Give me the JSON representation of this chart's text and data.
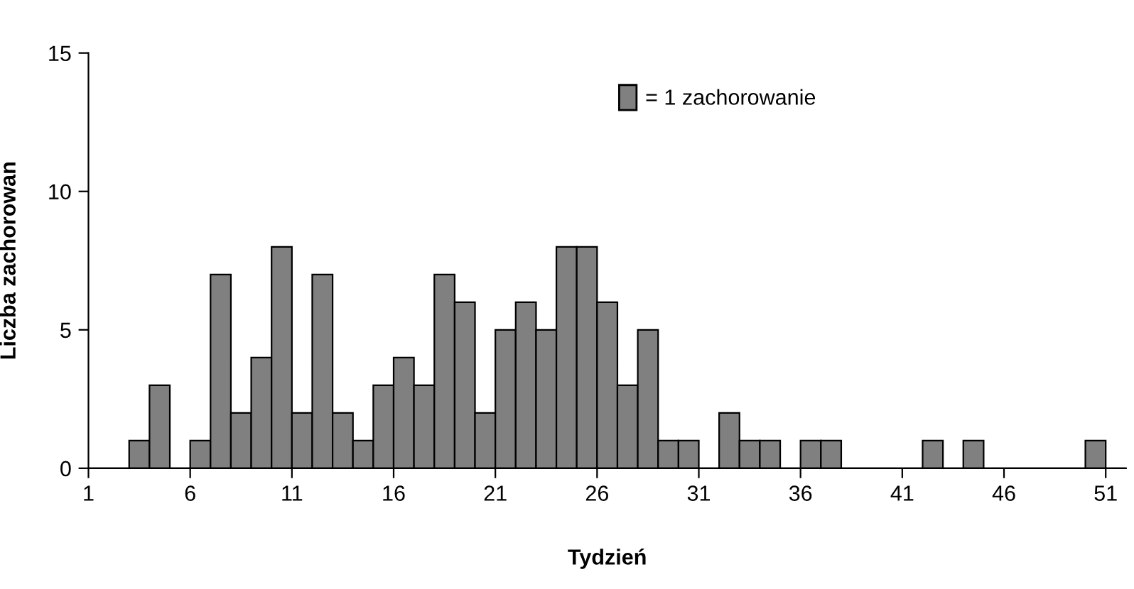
{
  "chart_data": {
    "type": "histogram",
    "xlabel": "Tydzień",
    "ylabel": "Liczba zachorowan",
    "bins": [
      1,
      2,
      3,
      4,
      5,
      6,
      7,
      8,
      9,
      10,
      11,
      12,
      13,
      14,
      15,
      16,
      17,
      18,
      19,
      20,
      21,
      22,
      23,
      24,
      25,
      26,
      27,
      28,
      29,
      30,
      31,
      32,
      33,
      34,
      35,
      36,
      37,
      38,
      39,
      40,
      41,
      42,
      43,
      44,
      45,
      46,
      47,
      48,
      49,
      50,
      51,
      52
    ],
    "series": [
      {
        "name": "= 1 zachorowanie",
        "color": "#808080",
        "values": [
          0,
          0,
          1,
          3,
          0,
          1,
          7,
          2,
          4,
          8,
          2,
          7,
          2,
          1,
          3,
          4,
          3,
          7,
          6,
          2,
          5,
          6,
          5,
          8,
          8,
          6,
          3,
          5,
          1,
          1,
          0,
          2,
          1,
          1,
          0,
          1,
          1,
          0,
          0,
          0,
          0,
          1,
          0,
          1,
          0,
          0,
          0,
          0,
          0,
          1,
          0
        ]
      }
    ],
    "xlim": [
      1,
      52
    ],
    "xticks": [
      1,
      6,
      11,
      16,
      21,
      26,
      31,
      36,
      41,
      46,
      51
    ],
    "ylim": [
      0,
      15
    ],
    "yticks": [
      0,
      5,
      10,
      15
    ],
    "grid": false,
    "legend": "top right"
  }
}
